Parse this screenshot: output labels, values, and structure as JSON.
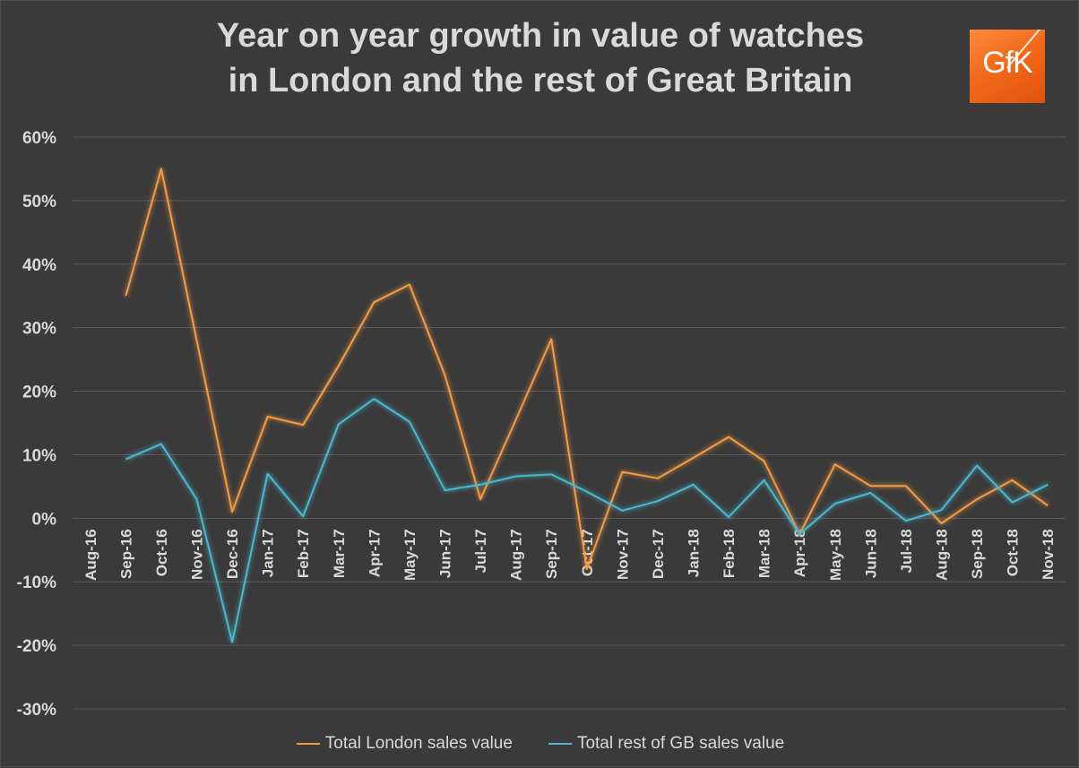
{
  "chart_data": {
    "type": "line",
    "title_lines": [
      "Year on year growth in value of watches",
      "in London and the rest of Great Britain"
    ],
    "categories": [
      "Aug-16",
      "Sep-16",
      "Oct-16",
      "Nov-16",
      "Dec-16",
      "Jan-17",
      "Feb-17",
      "Mar-17",
      "Apr-17",
      "May-17",
      "Jun-17",
      "Jul-17",
      "Aug-17",
      "Sep-17",
      "Oct-17",
      "Nov-17",
      "Dec-17",
      "Jan-18",
      "Feb-18",
      "Mar-18",
      "Apr-18",
      "May-18",
      "Jun-18",
      "Jul-18",
      "Aug-18",
      "Sep-18",
      "Oct-18",
      "Nov-18"
    ],
    "yticks": [
      -30,
      -20,
      -10,
      0,
      10,
      20,
      30,
      40,
      50,
      60
    ],
    "ytick_labels": [
      "-30%",
      "-20%",
      "-10%",
      "0%",
      "10%",
      "20%",
      "30%",
      "40%",
      "50%",
      "60%"
    ],
    "ylim": [
      -30,
      60
    ],
    "grid": true,
    "legend_position": "bottom",
    "series": [
      {
        "name": "Total London sales value",
        "color": "#f59b42",
        "values": [
          null,
          35,
          55,
          28,
          1,
          16,
          14.7,
          24,
          34,
          36.8,
          22.5,
          3,
          15.5,
          28.2,
          -8,
          7.3,
          6.3,
          9.5,
          12.8,
          9,
          -2.5,
          8.5,
          5.1,
          5.1,
          -0.8,
          3,
          6,
          2
        ]
      },
      {
        "name": "Total rest of GB sales value",
        "color": "#49b9d2",
        "values": [
          null,
          9.3,
          11.7,
          3,
          -19.5,
          7,
          0.3,
          14.8,
          18.8,
          15.2,
          4.4,
          5.3,
          6.6,
          6.9,
          4.2,
          1.2,
          2.7,
          5.3,
          0.2,
          6,
          -2.5,
          2.3,
          4,
          -0.4,
          1.3,
          8.3,
          2.5,
          5.3
        ]
      }
    ]
  },
  "logo": {
    "text": "GfK",
    "color": "#f26a1b"
  }
}
